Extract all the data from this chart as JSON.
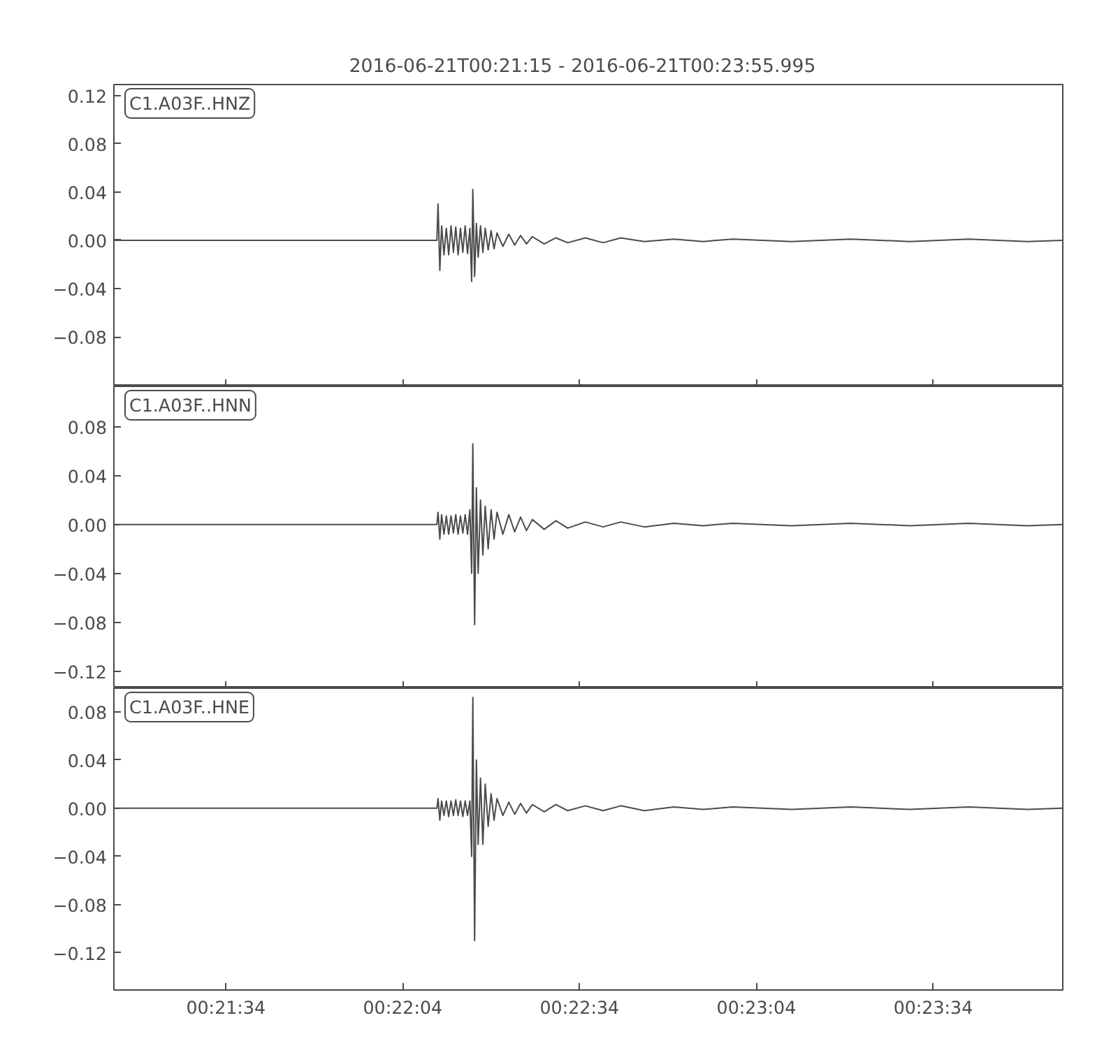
{
  "chart_data": [
    {
      "type": "line",
      "title": "2016-06-21T00:21:15  -  2016-06-21T00:23:55.995",
      "annotations": [
        "C1.A03F..HNZ"
      ],
      "tick_labels": "y",
      "grid": false,
      "marker": "none",
      "line_style": "solid",
      "x": [
        "2016-06-21T00:21:15",
        "2016-06-21T00:21:40",
        "2016-06-21T00:22:09.8",
        "2016-06-21T00:22:10.0",
        "2016-06-21T00:22:10.3",
        "2016-06-21T00:22:10.6",
        "2016-06-21T00:22:11.0",
        "2016-06-21T00:22:11.4",
        "2016-06-21T00:22:11.8",
        "2016-06-21T00:22:12.2",
        "2016-06-21T00:22:12.6",
        "2016-06-21T00:22:13.0",
        "2016-06-21T00:22:13.4",
        "2016-06-21T00:22:13.8",
        "2016-06-21T00:22:14.2",
        "2016-06-21T00:22:14.6",
        "2016-06-21T00:22:15.0",
        "2016-06-21T00:22:15.4",
        "2016-06-21T00:22:15.7",
        "2016-06-21T00:22:15.9",
        "2016-06-21T00:22:16.2",
        "2016-06-21T00:22:16.5",
        "2016-06-21T00:22:16.8",
        "2016-06-21T00:22:17.2",
        "2016-06-21T00:22:17.6",
        "2016-06-21T00:22:18.0",
        "2016-06-21T00:22:18.5",
        "2016-06-21T00:22:19.0",
        "2016-06-21T00:22:19.5",
        "2016-06-21T00:22:20",
        "2016-06-21T00:22:21",
        "2016-06-21T00:22:22",
        "2016-06-21T00:22:23",
        "2016-06-21T00:22:24",
        "2016-06-21T00:22:25",
        "2016-06-21T00:22:26",
        "2016-06-21T00:22:28",
        "2016-06-21T00:22:30",
        "2016-06-21T00:22:32",
        "2016-06-21T00:22:35",
        "2016-06-21T00:22:38",
        "2016-06-21T00:22:41",
        "2016-06-21T00:22:45",
        "2016-06-21T00:22:50",
        "2016-06-21T00:22:55",
        "2016-06-21T00:23:00",
        "2016-06-21T00:23:10",
        "2016-06-21T00:23:20",
        "2016-06-21T00:23:30",
        "2016-06-21T00:23:40",
        "2016-06-21T00:23:50",
        "2016-06-21T00:23:55.9"
      ],
      "series": [
        {
          "color": "#4b4b4b",
          "values": [
            0,
            0,
            0,
            0.03,
            -0.025,
            0.012,
            -0.012,
            0.01,
            -0.012,
            0.012,
            -0.01,
            0.011,
            -0.012,
            0.01,
            -0.01,
            0.012,
            -0.011,
            0.01,
            -0.034,
            0.042,
            -0.03,
            0.014,
            -0.014,
            0.012,
            -0.01,
            0.01,
            -0.008,
            0.008,
            -0.007,
            0.006,
            -0.005,
            0.005,
            -0.004,
            0.004,
            -0.003,
            0.003,
            -0.003,
            0.002,
            -0.002,
            0.002,
            -0.002,
            0.002,
            -0.001,
            0.001,
            -0.001,
            0.001,
            -0.001,
            0.001,
            -0.001,
            0.001,
            -0.001,
            0
          ]
        }
      ],
      "xlim": [
        "2016-06-21T00:21:15",
        "2016-06-21T00:23:55.995"
      ],
      "xticks": [
        {
          "value": "2016-06-21T00:21:34",
          "label": null
        },
        {
          "value": "2016-06-21T00:22:04",
          "label": null
        },
        {
          "value": "2016-06-21T00:22:34",
          "label": null
        },
        {
          "value": "2016-06-21T00:23:04",
          "label": null
        },
        {
          "value": "2016-06-21T00:23:34",
          "label": null
        }
      ],
      "ylim": [
        -0.121,
        0.129
      ],
      "yticks": [
        {
          "value": -0.08,
          "label": "−0.08"
        },
        {
          "value": -0.04,
          "label": "−0.04"
        },
        {
          "value": 0,
          "label": "0.00"
        },
        {
          "value": 0.04,
          "label": "0.04"
        },
        {
          "value": 0.08,
          "label": "0.08"
        },
        {
          "value": 0.12,
          "label": "0.12"
        }
      ]
    },
    {
      "type": "line",
      "annotations": [
        "C1.A03F..HNN"
      ],
      "tick_labels": "y",
      "grid": false,
      "marker": "none",
      "line_style": "solid",
      "x": [
        "2016-06-21T00:21:15",
        "2016-06-21T00:21:40",
        "2016-06-21T00:22:09.8",
        "2016-06-21T00:22:10.0",
        "2016-06-21T00:22:10.3",
        "2016-06-21T00:22:10.6",
        "2016-06-21T00:22:11.0",
        "2016-06-21T00:22:11.4",
        "2016-06-21T00:22:11.8",
        "2016-06-21T00:22:12.2",
        "2016-06-21T00:22:12.6",
        "2016-06-21T00:22:13.0",
        "2016-06-21T00:22:13.4",
        "2016-06-21T00:22:13.8",
        "2016-06-21T00:22:14.2",
        "2016-06-21T00:22:14.6",
        "2016-06-21T00:22:15.0",
        "2016-06-21T00:22:15.4",
        "2016-06-21T00:22:15.7",
        "2016-06-21T00:22:15.9",
        "2016-06-21T00:22:16.2",
        "2016-06-21T00:22:16.5",
        "2016-06-21T00:22:16.8",
        "2016-06-21T00:22:17.2",
        "2016-06-21T00:22:17.6",
        "2016-06-21T00:22:18.0",
        "2016-06-21T00:22:18.5",
        "2016-06-21T00:22:19.0",
        "2016-06-21T00:22:19.5",
        "2016-06-21T00:22:20",
        "2016-06-21T00:22:21",
        "2016-06-21T00:22:22",
        "2016-06-21T00:22:23",
        "2016-06-21T00:22:24",
        "2016-06-21T00:22:25",
        "2016-06-21T00:22:26",
        "2016-06-21T00:22:28",
        "2016-06-21T00:22:30",
        "2016-06-21T00:22:32",
        "2016-06-21T00:22:35",
        "2016-06-21T00:22:38",
        "2016-06-21T00:22:41",
        "2016-06-21T00:22:45",
        "2016-06-21T00:22:50",
        "2016-06-21T00:22:55",
        "2016-06-21T00:23:00",
        "2016-06-21T00:23:10",
        "2016-06-21T00:23:20",
        "2016-06-21T00:23:30",
        "2016-06-21T00:23:40",
        "2016-06-21T00:23:50",
        "2016-06-21T00:23:55.9"
      ],
      "series": [
        {
          "color": "#4b4b4b",
          "values": [
            0,
            0,
            0,
            0.01,
            -0.012,
            0.008,
            -0.008,
            0.007,
            -0.008,
            0.007,
            -0.007,
            0.008,
            -0.008,
            0.007,
            -0.007,
            0.008,
            -0.008,
            0.012,
            -0.04,
            0.066,
            -0.082,
            0.03,
            -0.04,
            0.02,
            -0.025,
            0.015,
            -0.02,
            0.012,
            -0.012,
            0.01,
            -0.008,
            0.008,
            -0.006,
            0.006,
            -0.005,
            0.004,
            -0.004,
            0.003,
            -0.003,
            0.002,
            -0.002,
            0.002,
            -0.002,
            0.001,
            -0.001,
            0.001,
            -0.001,
            0.001,
            -0.001,
            0.001,
            -0.001,
            0
          ]
        }
      ],
      "xlim": [
        "2016-06-21T00:21:15",
        "2016-06-21T00:23:55.995"
      ],
      "xticks": [
        {
          "value": "2016-06-21T00:21:34",
          "label": null
        },
        {
          "value": "2016-06-21T00:22:04",
          "label": null
        },
        {
          "value": "2016-06-21T00:22:34",
          "label": null
        },
        {
          "value": "2016-06-21T00:23:04",
          "label": null
        },
        {
          "value": "2016-06-21T00:23:34",
          "label": null
        }
      ],
      "ylim": [
        -0.134,
        0.113
      ],
      "yticks": [
        {
          "value": -0.12,
          "label": "−0.12"
        },
        {
          "value": -0.08,
          "label": "−0.08"
        },
        {
          "value": -0.04,
          "label": "−0.04"
        },
        {
          "value": 0,
          "label": "0.00"
        },
        {
          "value": 0.04,
          "label": "0.04"
        },
        {
          "value": 0.08,
          "label": "0.08"
        }
      ]
    },
    {
      "type": "line",
      "annotations": [
        "C1.A03F..HNE"
      ],
      "grid": false,
      "marker": "none",
      "line_style": "solid",
      "x": [
        "2016-06-21T00:21:15",
        "2016-06-21T00:21:40",
        "2016-06-21T00:22:09.8",
        "2016-06-21T00:22:10.0",
        "2016-06-21T00:22:10.3",
        "2016-06-21T00:22:10.6",
        "2016-06-21T00:22:11.0",
        "2016-06-21T00:22:11.4",
        "2016-06-21T00:22:11.8",
        "2016-06-21T00:22:12.2",
        "2016-06-21T00:22:12.6",
        "2016-06-21T00:22:13.0",
        "2016-06-21T00:22:13.4",
        "2016-06-21T00:22:13.8",
        "2016-06-21T00:22:14.2",
        "2016-06-21T00:22:14.6",
        "2016-06-21T00:22:15.0",
        "2016-06-21T00:22:15.4",
        "2016-06-21T00:22:15.7",
        "2016-06-21T00:22:15.9",
        "2016-06-21T00:22:16.2",
        "2016-06-21T00:22:16.5",
        "2016-06-21T00:22:16.8",
        "2016-06-21T00:22:17.2",
        "2016-06-21T00:22:17.6",
        "2016-06-21T00:22:18.0",
        "2016-06-21T00:22:18.5",
        "2016-06-21T00:22:19.0",
        "2016-06-21T00:22:19.5",
        "2016-06-21T00:22:20",
        "2016-06-21T00:22:21",
        "2016-06-21T00:22:22",
        "2016-06-21T00:22:23",
        "2016-06-21T00:22:24",
        "2016-06-21T00:22:25",
        "2016-06-21T00:22:26",
        "2016-06-21T00:22:28",
        "2016-06-21T00:22:30",
        "2016-06-21T00:22:32",
        "2016-06-21T00:22:35",
        "2016-06-21T00:22:38",
        "2016-06-21T00:22:41",
        "2016-06-21T00:22:45",
        "2016-06-21T00:22:50",
        "2016-06-21T00:22:55",
        "2016-06-21T00:23:00",
        "2016-06-21T00:23:10",
        "2016-06-21T00:23:20",
        "2016-06-21T00:23:30",
        "2016-06-21T00:23:40",
        "2016-06-21T00:23:50",
        "2016-06-21T00:23:55.9"
      ],
      "series": [
        {
          "color": "#4b4b4b",
          "values": [
            0,
            0,
            0,
            0.008,
            -0.01,
            0.006,
            -0.006,
            0.006,
            -0.007,
            0.006,
            -0.006,
            0.007,
            -0.006,
            0.006,
            -0.007,
            0.006,
            -0.006,
            0.006,
            -0.04,
            0.092,
            -0.11,
            0.04,
            -0.03,
            0.025,
            -0.03,
            0.02,
            -0.015,
            0.012,
            -0.01,
            0.008,
            -0.006,
            0.005,
            -0.005,
            0.004,
            -0.004,
            0.003,
            -0.003,
            0.003,
            -0.002,
            0.002,
            -0.002,
            0.002,
            -0.002,
            0.001,
            -0.001,
            0.001,
            -0.001,
            0.001,
            -0.001,
            0.001,
            -0.001,
            0
          ]
        }
      ],
      "xlim": [
        "2016-06-21T00:21:15",
        "2016-06-21T00:23:55.995"
      ],
      "xticks": [
        {
          "value": "2016-06-21T00:21:34",
          "label": "00:21:34"
        },
        {
          "value": "2016-06-21T00:22:04",
          "label": "00:22:04"
        },
        {
          "value": "2016-06-21T00:22:34",
          "label": "00:22:34"
        },
        {
          "value": "2016-06-21T00:23:04",
          "label": "00:23:04"
        },
        {
          "value": "2016-06-21T00:23:34",
          "label": "00:23:34"
        }
      ],
      "ylim": [
        -0.151,
        0.0997
      ],
      "yticks": [
        {
          "value": -0.12,
          "label": "−0.12"
        },
        {
          "value": -0.08,
          "label": "−0.08"
        },
        {
          "value": -0.04,
          "label": "−0.04"
        },
        {
          "value": 0,
          "label": "0.00"
        },
        {
          "value": 0.04,
          "label": "0.04"
        },
        {
          "value": 0.08,
          "label": "0.08"
        }
      ]
    }
  ]
}
